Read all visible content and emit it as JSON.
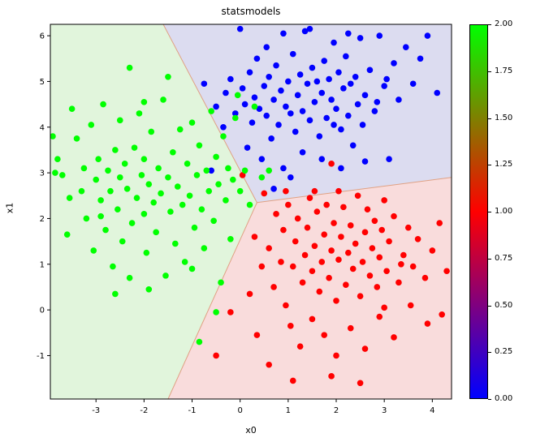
{
  "chart_data": {
    "type": "scatter",
    "title": "statsmodels",
    "xlabel": "x0",
    "ylabel": "x1",
    "xlim": [
      -3.95,
      4.4
    ],
    "ylim": [
      -1.95,
      6.25
    ],
    "xticks": [
      -3,
      -2,
      -1,
      0,
      1,
      2,
      3,
      4
    ],
    "yticks": [
      -1,
      0,
      1,
      2,
      3,
      4,
      5,
      6
    ],
    "grid": false,
    "boundary_color": "#e0a184",
    "regions": [
      {
        "name": "region-class-2",
        "fill": "#e1f5dc",
        "points": [
          [
            -3.95,
            6.25
          ],
          [
            -1.6,
            6.25
          ],
          [
            0.35,
            2.35
          ],
          [
            -1.5,
            -1.95
          ],
          [
            -3.95,
            -1.95
          ]
        ]
      },
      {
        "name": "region-class-0",
        "fill": "#dcdcf0",
        "points": [
          [
            -1.6,
            6.25
          ],
          [
            4.4,
            6.25
          ],
          [
            4.4,
            2.9
          ],
          [
            0.35,
            2.35
          ]
        ]
      },
      {
        "name": "region-class-1",
        "fill": "#f9dcdc",
        "points": [
          [
            0.35,
            2.35
          ],
          [
            4.4,
            2.9
          ],
          [
            4.4,
            -1.95
          ],
          [
            -1.5,
            -1.95
          ]
        ]
      }
    ],
    "boundaries": [
      [
        [
          0.35,
          2.35
        ],
        [
          -1.6,
          6.25
        ]
      ],
      [
        [
          0.35,
          2.35
        ],
        [
          -1.5,
          -1.95
        ]
      ],
      [
        [
          0.35,
          2.35
        ],
        [
          4.4,
          2.9
        ]
      ]
    ],
    "series": [
      {
        "name": "class-0",
        "value": 0,
        "color": "#0000ff",
        "points": [
          [
            -0.75,
            4.95
          ],
          [
            -0.5,
            4.45
          ],
          [
            -0.6,
            3.05
          ],
          [
            -0.35,
            4.0
          ],
          [
            -0.3,
            4.75
          ],
          [
            -0.2,
            5.05
          ],
          [
            -0.1,
            4.3
          ],
          [
            0.0,
            6.15
          ],
          [
            0.05,
            4.85
          ],
          [
            0.1,
            4.5
          ],
          [
            0.15,
            3.55
          ],
          [
            0.2,
            5.2
          ],
          [
            0.25,
            4.1
          ],
          [
            0.3,
            4.65
          ],
          [
            0.35,
            5.5
          ],
          [
            0.4,
            4.4
          ],
          [
            0.45,
            3.3
          ],
          [
            0.5,
            4.9
          ],
          [
            0.55,
            4.25
          ],
          [
            0.55,
            5.75
          ],
          [
            0.6,
            5.1
          ],
          [
            0.65,
            3.75
          ],
          [
            0.7,
            4.6
          ],
          [
            0.7,
            2.65
          ],
          [
            0.75,
            5.35
          ],
          [
            0.8,
            4.05
          ],
          [
            0.85,
            4.8
          ],
          [
            0.9,
            6.05
          ],
          [
            0.9,
            3.1
          ],
          [
            0.95,
            4.45
          ],
          [
            1.0,
            5.0
          ],
          [
            1.05,
            4.3
          ],
          [
            1.05,
            2.9
          ],
          [
            1.1,
            5.6
          ],
          [
            1.15,
            3.9
          ],
          [
            1.2,
            4.7
          ],
          [
            1.25,
            5.15
          ],
          [
            1.3,
            4.35
          ],
          [
            1.3,
            3.45
          ],
          [
            1.35,
            6.1
          ],
          [
            1.4,
            4.95
          ],
          [
            1.45,
            4.15
          ],
          [
            1.45,
            6.15
          ],
          [
            1.5,
            5.3
          ],
          [
            1.55,
            4.55
          ],
          [
            1.6,
            5.0
          ],
          [
            1.65,
            3.8
          ],
          [
            1.7,
            4.75
          ],
          [
            1.7,
            3.3
          ],
          [
            1.75,
            5.45
          ],
          [
            1.8,
            4.2
          ],
          [
            1.85,
            5.05
          ],
          [
            1.9,
            4.6
          ],
          [
            1.95,
            5.85
          ],
          [
            1.95,
            4.05
          ],
          [
            2.0,
            4.4
          ],
          [
            2.05,
            5.2
          ],
          [
            2.1,
            3.95
          ],
          [
            2.1,
            3.1
          ],
          [
            2.15,
            4.85
          ],
          [
            2.2,
            5.55
          ],
          [
            2.25,
            4.25
          ],
          [
            2.25,
            6.05
          ],
          [
            2.3,
            4.95
          ],
          [
            2.35,
            3.6
          ],
          [
            2.4,
            5.1
          ],
          [
            2.45,
            4.5
          ],
          [
            2.5,
            5.95
          ],
          [
            2.55,
            4.05
          ],
          [
            2.6,
            4.7
          ],
          [
            2.6,
            3.25
          ],
          [
            2.7,
            5.25
          ],
          [
            2.8,
            4.35
          ],
          [
            2.85,
            4.55
          ],
          [
            2.9,
            6.0
          ],
          [
            3.0,
            4.9
          ],
          [
            3.05,
            5.05
          ],
          [
            3.1,
            3.3
          ],
          [
            3.2,
            5.4
          ],
          [
            3.3,
            4.6
          ],
          [
            3.45,
            5.75
          ],
          [
            3.6,
            4.95
          ],
          [
            3.75,
            5.5
          ],
          [
            3.9,
            6.0
          ],
          [
            4.1,
            4.75
          ]
        ]
      },
      {
        "name": "class-1",
        "value": 1,
        "color": "#ff0000",
        "points": [
          [
            0.05,
            2.95
          ],
          [
            1.9,
            3.2
          ],
          [
            0.5,
            2.55
          ],
          [
            0.75,
            2.1
          ],
          [
            0.9,
            1.75
          ],
          [
            0.95,
            2.6
          ],
          [
            1.0,
            2.3
          ],
          [
            1.1,
            0.95
          ],
          [
            1.15,
            1.5
          ],
          [
            1.2,
            2.0
          ],
          [
            1.3,
            0.6
          ],
          [
            1.35,
            1.2
          ],
          [
            1.4,
            1.8
          ],
          [
            1.45,
            2.45
          ],
          [
            1.5,
            0.85
          ],
          [
            1.55,
            1.4
          ],
          [
            1.55,
            2.6
          ],
          [
            1.6,
            2.15
          ],
          [
            1.65,
            0.4
          ],
          [
            1.7,
            1.05
          ],
          [
            1.75,
            1.65
          ],
          [
            1.8,
            2.3
          ],
          [
            1.85,
            0.7
          ],
          [
            1.9,
            1.3
          ],
          [
            1.95,
            1.9
          ],
          [
            2.0,
            0.2
          ],
          [
            2.05,
            1.1
          ],
          [
            2.05,
            2.6
          ],
          [
            2.1,
            1.6
          ],
          [
            2.15,
            2.25
          ],
          [
            2.2,
            0.55
          ],
          [
            2.25,
            1.25
          ],
          [
            2.3,
            1.85
          ],
          [
            2.35,
            0.9
          ],
          [
            2.4,
            1.45
          ],
          [
            2.45,
            2.5
          ],
          [
            2.5,
            0.3
          ],
          [
            2.55,
            1.05
          ],
          [
            2.6,
            1.7
          ],
          [
            2.65,
            2.2
          ],
          [
            2.7,
            0.75
          ],
          [
            2.75,
            1.35
          ],
          [
            2.8,
            1.95
          ],
          [
            2.85,
            0.5
          ],
          [
            2.9,
            1.15
          ],
          [
            2.95,
            1.75
          ],
          [
            3.0,
            2.4
          ],
          [
            3.0,
            0.05
          ],
          [
            3.05,
            0.85
          ],
          [
            3.1,
            1.5
          ],
          [
            3.2,
            2.05
          ],
          [
            3.3,
            0.6
          ],
          [
            3.35,
            1.0
          ],
          [
            3.4,
            1.2
          ],
          [
            3.5,
            1.8
          ],
          [
            3.6,
            0.95
          ],
          [
            3.7,
            1.55
          ],
          [
            3.85,
            0.7
          ],
          [
            4.0,
            1.3
          ],
          [
            4.15,
            1.9
          ],
          [
            4.3,
            0.85
          ],
          [
            0.3,
            1.6
          ],
          [
            0.45,
            0.95
          ],
          [
            0.6,
            1.35
          ],
          [
            0.7,
            0.5
          ],
          [
            0.85,
            1.05
          ],
          [
            0.95,
            0.1
          ],
          [
            1.05,
            -0.35
          ],
          [
            1.25,
            -0.8
          ],
          [
            1.5,
            -0.2
          ],
          [
            1.75,
            -0.55
          ],
          [
            2.0,
            -1.0
          ],
          [
            2.3,
            -0.4
          ],
          [
            2.6,
            -0.85
          ],
          [
            2.9,
            -0.15
          ],
          [
            3.2,
            -0.6
          ],
          [
            3.55,
            0.1
          ],
          [
            0.6,
            -1.2
          ],
          [
            1.1,
            -1.55
          ],
          [
            1.9,
            -1.45
          ],
          [
            2.5,
            -1.6
          ],
          [
            0.2,
            0.35
          ],
          [
            -0.2,
            -0.05
          ],
          [
            -0.5,
            -1.0
          ],
          [
            3.9,
            -0.3
          ],
          [
            4.2,
            -0.1
          ],
          [
            0.35,
            -0.55
          ]
        ]
      },
      {
        "name": "class-2",
        "value": 2,
        "color": "#00ff00",
        "points": [
          [
            -3.9,
            3.8
          ],
          [
            -3.85,
            3.0
          ],
          [
            -3.8,
            3.3
          ],
          [
            -3.7,
            2.95
          ],
          [
            -3.6,
            1.65
          ],
          [
            -3.5,
            4.4
          ],
          [
            -3.55,
            2.45
          ],
          [
            -3.4,
            3.75
          ],
          [
            -3.3,
            2.6
          ],
          [
            -3.25,
            3.1
          ],
          [
            -3.2,
            2.0
          ],
          [
            -3.1,
            4.05
          ],
          [
            -3.05,
            1.3
          ],
          [
            -3.0,
            2.85
          ],
          [
            -2.95,
            3.3
          ],
          [
            -2.9,
            2.05
          ],
          [
            -2.9,
            2.4
          ],
          [
            -2.85,
            4.5
          ],
          [
            -2.8,
            1.75
          ],
          [
            -2.75,
            3.05
          ],
          [
            -2.7,
            2.6
          ],
          [
            -2.65,
            0.95
          ],
          [
            -2.6,
            3.5
          ],
          [
            -2.6,
            0.35
          ],
          [
            -2.55,
            2.2
          ],
          [
            -2.5,
            4.15
          ],
          [
            -2.5,
            2.9
          ],
          [
            -2.45,
            1.5
          ],
          [
            -2.4,
            3.2
          ],
          [
            -2.35,
            2.65
          ],
          [
            -2.3,
            5.3
          ],
          [
            -2.3,
            0.7
          ],
          [
            -2.25,
            1.9
          ],
          [
            -2.2,
            3.55
          ],
          [
            -2.15,
            2.45
          ],
          [
            -2.1,
            4.3
          ],
          [
            -2.05,
            2.95
          ],
          [
            -2.0,
            2.1
          ],
          [
            -2.0,
            3.3
          ],
          [
            -2.0,
            4.55
          ],
          [
            -1.95,
            1.25
          ],
          [
            -1.9,
            2.75
          ],
          [
            -1.9,
            0.45
          ],
          [
            -1.85,
            3.9
          ],
          [
            -1.8,
            2.35
          ],
          [
            -1.75,
            1.7
          ],
          [
            -1.7,
            3.1
          ],
          [
            -1.65,
            2.55
          ],
          [
            -1.6,
            4.6
          ],
          [
            -1.55,
            0.75
          ],
          [
            -1.5,
            2.9
          ],
          [
            -1.5,
            5.1
          ],
          [
            -1.45,
            2.15
          ],
          [
            -1.4,
            3.45
          ],
          [
            -1.35,
            1.45
          ],
          [
            -1.3,
            2.7
          ],
          [
            -1.25,
            3.95
          ],
          [
            -1.2,
            2.3
          ],
          [
            -1.15,
            1.05
          ],
          [
            -1.1,
            3.2
          ],
          [
            -1.05,
            2.5
          ],
          [
            -1.0,
            4.1
          ],
          [
            -1.0,
            0.9
          ],
          [
            -0.95,
            1.8
          ],
          [
            -0.9,
            2.95
          ],
          [
            -0.85,
            3.6
          ],
          [
            -0.85,
            -0.7
          ],
          [
            -0.8,
            2.2
          ],
          [
            -0.75,
            1.35
          ],
          [
            -0.7,
            3.05
          ],
          [
            -0.65,
            2.6
          ],
          [
            -0.6,
            4.35
          ],
          [
            -0.55,
            1.95
          ],
          [
            -0.5,
            3.35
          ],
          [
            -0.5,
            -0.05
          ],
          [
            -0.45,
            2.75
          ],
          [
            -0.4,
            0.6
          ],
          [
            -0.35,
            3.8
          ],
          [
            -0.3,
            2.4
          ],
          [
            -0.25,
            3.1
          ],
          [
            -0.2,
            1.55
          ],
          [
            -0.15,
            2.85
          ],
          [
            -0.1,
            4.2
          ],
          [
            -0.05,
            4.7
          ],
          [
            0.0,
            2.6
          ],
          [
            0.1,
            3.05
          ],
          [
            0.2,
            2.3
          ],
          [
            0.3,
            4.45
          ],
          [
            0.45,
            2.9
          ],
          [
            0.6,
            3.05
          ]
        ]
      }
    ],
    "colorbar": {
      "max": 2,
      "ticks": [
        "0.00",
        "0.25",
        "0.50",
        "0.75",
        "1.00",
        "1.25",
        "1.50",
        "1.75",
        "2.00"
      ],
      "colors": [
        "#0000ff",
        "#ff0000",
        "#00ff00"
      ]
    }
  }
}
